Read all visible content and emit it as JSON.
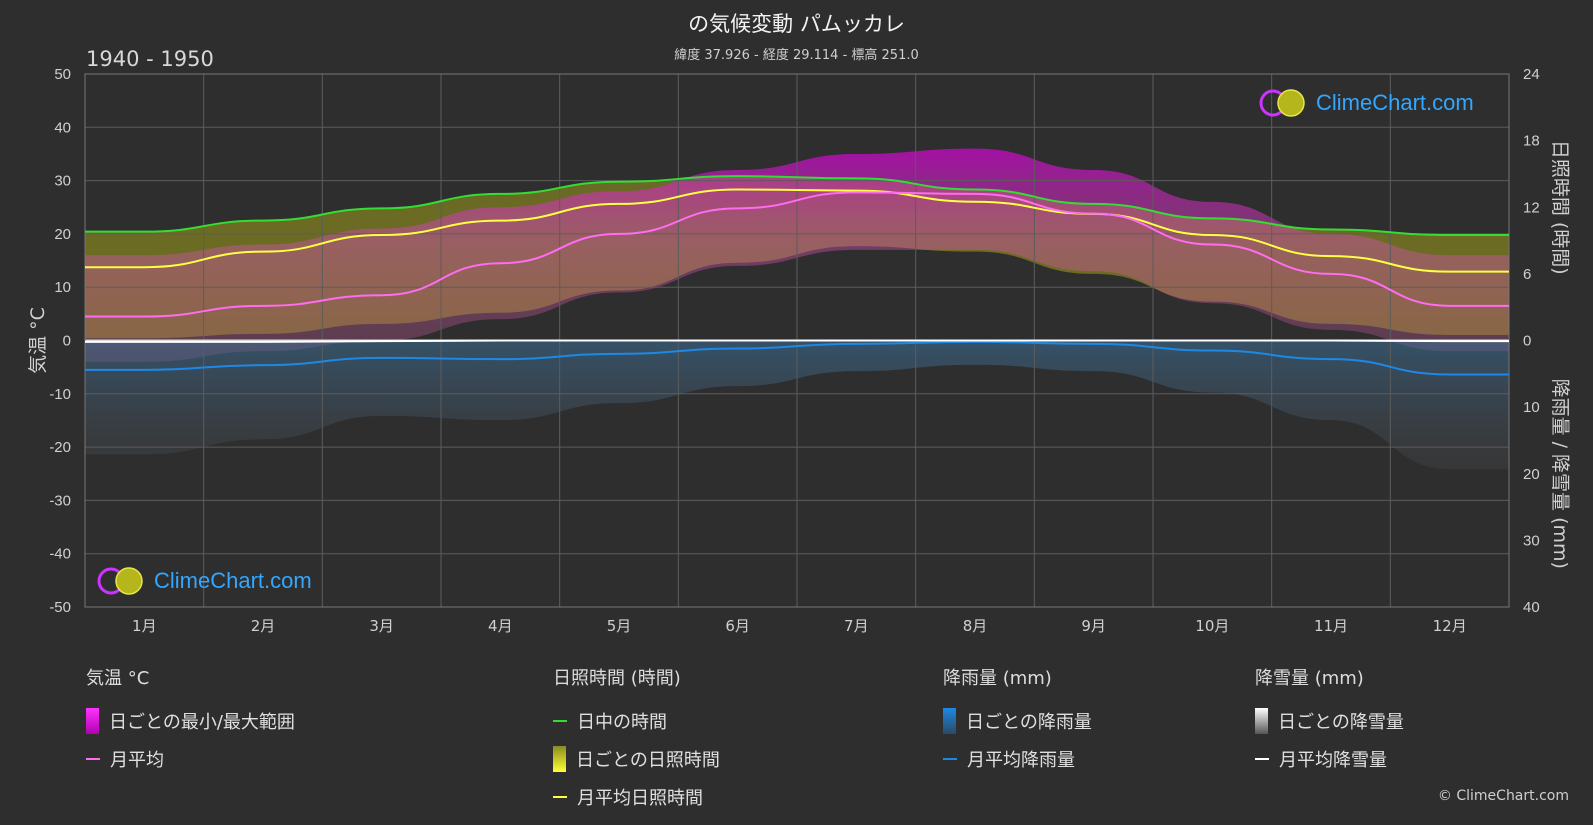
{
  "title": "の気候変動 パムッカレ",
  "subtitle": "緯度 37.926 - 経度 29.114 - 標高 251.0",
  "period": "1940 - 1950",
  "copyright": "© ClimeChart.com",
  "logo_text": "ClimeChart.com",
  "colors": {
    "background": "#2e2e2e",
    "temp_range": "#e600e6",
    "temp_mean": "#ff6cf0",
    "daylight": "#33dd33",
    "sunshine": "#b5b51c",
    "sunshine_mean": "#ffff44",
    "rain": "#2f8fd8",
    "rain_mean": "#1e88e5",
    "snow": "#bdbdbd",
    "snow_mean": "#ffffff",
    "logo": "#33a6ff"
  },
  "chart_data": {
    "type": "area",
    "categories": [
      "1月",
      "2月",
      "3月",
      "4月",
      "5月",
      "6月",
      "7月",
      "8月",
      "9月",
      "10月",
      "11月",
      "12月"
    ],
    "axes": {
      "left": {
        "label": "気温 °C",
        "ylim": [
          -50,
          50
        ],
        "ticks": [
          50,
          40,
          30,
          20,
          10,
          0,
          -10,
          -20,
          -30,
          -40,
          -50
        ]
      },
      "right_top": {
        "label": "日照時間 (時間)",
        "ylim": [
          0,
          24
        ],
        "ticks": [
          24,
          18,
          12,
          6,
          0
        ]
      },
      "right_bottom": {
        "label": "降雨量 / 降雪量 (mm)",
        "ylim": [
          0,
          40
        ],
        "ticks": [
          10,
          20,
          30,
          40
        ]
      }
    },
    "grid": true,
    "series": [
      {
        "name": "月平均",
        "axis": "left",
        "values": [
          4.5,
          6.5,
          8.5,
          14.5,
          20.0,
          24.8,
          27.8,
          27.5,
          23.8,
          18.0,
          12.5,
          6.5
        ]
      },
      {
        "name": "日中の時間",
        "axis": "right_top",
        "values": [
          9.8,
          10.8,
          11.9,
          13.2,
          14.3,
          14.8,
          14.6,
          13.6,
          12.3,
          11.0,
          10.0,
          9.5
        ]
      },
      {
        "name": "月平均日照時間",
        "axis": "right_top",
        "values": [
          6.6,
          8.0,
          9.5,
          10.8,
          12.3,
          13.6,
          13.5,
          12.5,
          11.4,
          9.5,
          7.6,
          6.2
        ]
      },
      {
        "name": "月平均降雨量",
        "axis": "right_bottom",
        "values": [
          4.4,
          3.7,
          2.6,
          2.8,
          2.0,
          1.2,
          0.5,
          0.2,
          0.5,
          1.5,
          2.8,
          5.1
        ]
      },
      {
        "name": "月平均降雪量",
        "axis": "right_bottom",
        "values": [
          0.2,
          0.2,
          0.1,
          0,
          0,
          0,
          0,
          0,
          0,
          0,
          0,
          0.1
        ]
      }
    ],
    "temp_range_max": [
      16,
      18,
      21,
      25,
      28,
      32,
      35,
      36,
      32,
      26,
      20,
      16
    ],
    "temp_range_min": [
      -4,
      -2,
      0,
      4,
      9,
      14,
      17,
      17,
      13,
      7,
      2,
      -2
    ],
    "daily_sunshine_min": [
      0.2,
      0.6,
      1.5,
      2.5,
      4.5,
      7.0,
      8.5,
      8.0,
      6.0,
      3.5,
      1.5,
      0.5
    ]
  },
  "legend": {
    "temperature": {
      "header": "気温 °C",
      "range": "日ごとの最小/最大範囲",
      "mean": "月平均"
    },
    "sunshine": {
      "header": "日照時間 (時間)",
      "daylight": "日中の時間",
      "daily": "日ごとの日照時間",
      "mean": "月平均日照時間"
    },
    "rain": {
      "header": "降雨量 (mm)",
      "daily": "日ごとの降雨量",
      "mean": "月平均降雨量"
    },
    "snow": {
      "header": "降雪量 (mm)",
      "daily": "日ごとの降雪量",
      "mean": "月平均降雪量"
    }
  }
}
